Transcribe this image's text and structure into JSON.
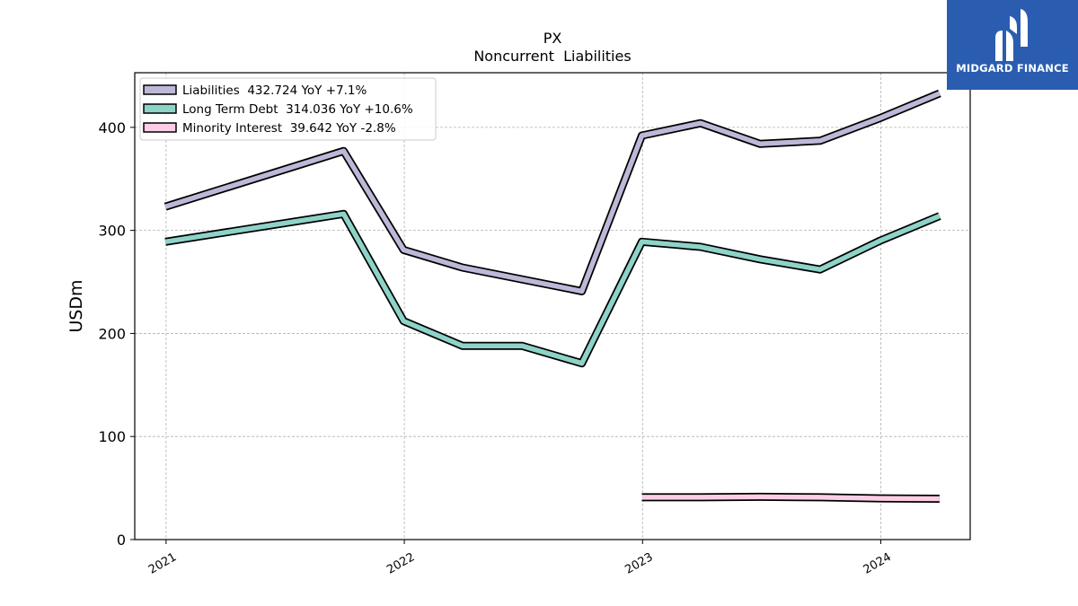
{
  "brand": {
    "name": "MIDGARD FINANCE",
    "bg_color": "#2a5db0"
  },
  "chart_data": {
    "type": "line",
    "title": "PX",
    "subtitle": "Noncurrent  Liabilities",
    "xlabel": "",
    "ylabel": "USDm",
    "ylim": [
      0,
      453
    ],
    "xlim": [
      "2020-11-14",
      "2024-05-17"
    ],
    "grid": true,
    "legend_position": "top-left",
    "x_ticks": [
      "2021",
      "2022",
      "2023",
      "2024"
    ],
    "y_ticks": [
      0,
      100,
      200,
      300,
      400
    ],
    "series": [
      {
        "name": "Liabilities",
        "legend_label": "Liabilities  432.724 YoY +7.1%",
        "color": "#bcb8d8",
        "points": [
          [
            "2020-12-31",
            323
          ],
          [
            "2021-09-30",
            377
          ],
          [
            "2021-12-31",
            281
          ],
          [
            "2022-03-31",
            264
          ],
          [
            "2022-09-30",
            241
          ],
          [
            "2022-12-31",
            392
          ],
          [
            "2023-03-31",
            404
          ],
          [
            "2023-06-30",
            384
          ],
          [
            "2023-09-30",
            387
          ],
          [
            "2023-12-31",
            409
          ],
          [
            "2024-03-31",
            433
          ]
        ]
      },
      {
        "name": "Long Term Debt",
        "legend_label": "Long Term Debt  314.036 YoY +10.6%",
        "color": "#8dd3c7",
        "points": [
          [
            "2020-12-31",
            289
          ],
          [
            "2021-09-30",
            316
          ],
          [
            "2021-12-31",
            212
          ],
          [
            "2022-03-31",
            188
          ],
          [
            "2022-06-30",
            188
          ],
          [
            "2022-09-30",
            171
          ],
          [
            "2022-12-31",
            289
          ],
          [
            "2023-03-31",
            284
          ],
          [
            "2023-06-30",
            272
          ],
          [
            "2023-09-30",
            262
          ],
          [
            "2023-12-31",
            290
          ],
          [
            "2024-03-31",
            314
          ]
        ]
      },
      {
        "name": "Minority Interest",
        "legend_label": "Minority Interest  39.642 YoY -2.8%",
        "color": "#fccde5",
        "points": [
          [
            "2022-12-31",
            41
          ],
          [
            "2023-03-31",
            41
          ],
          [
            "2023-06-30",
            41.5
          ],
          [
            "2023-09-30",
            41
          ],
          [
            "2023-12-31",
            40
          ],
          [
            "2024-03-31",
            39.6
          ]
        ]
      }
    ]
  }
}
